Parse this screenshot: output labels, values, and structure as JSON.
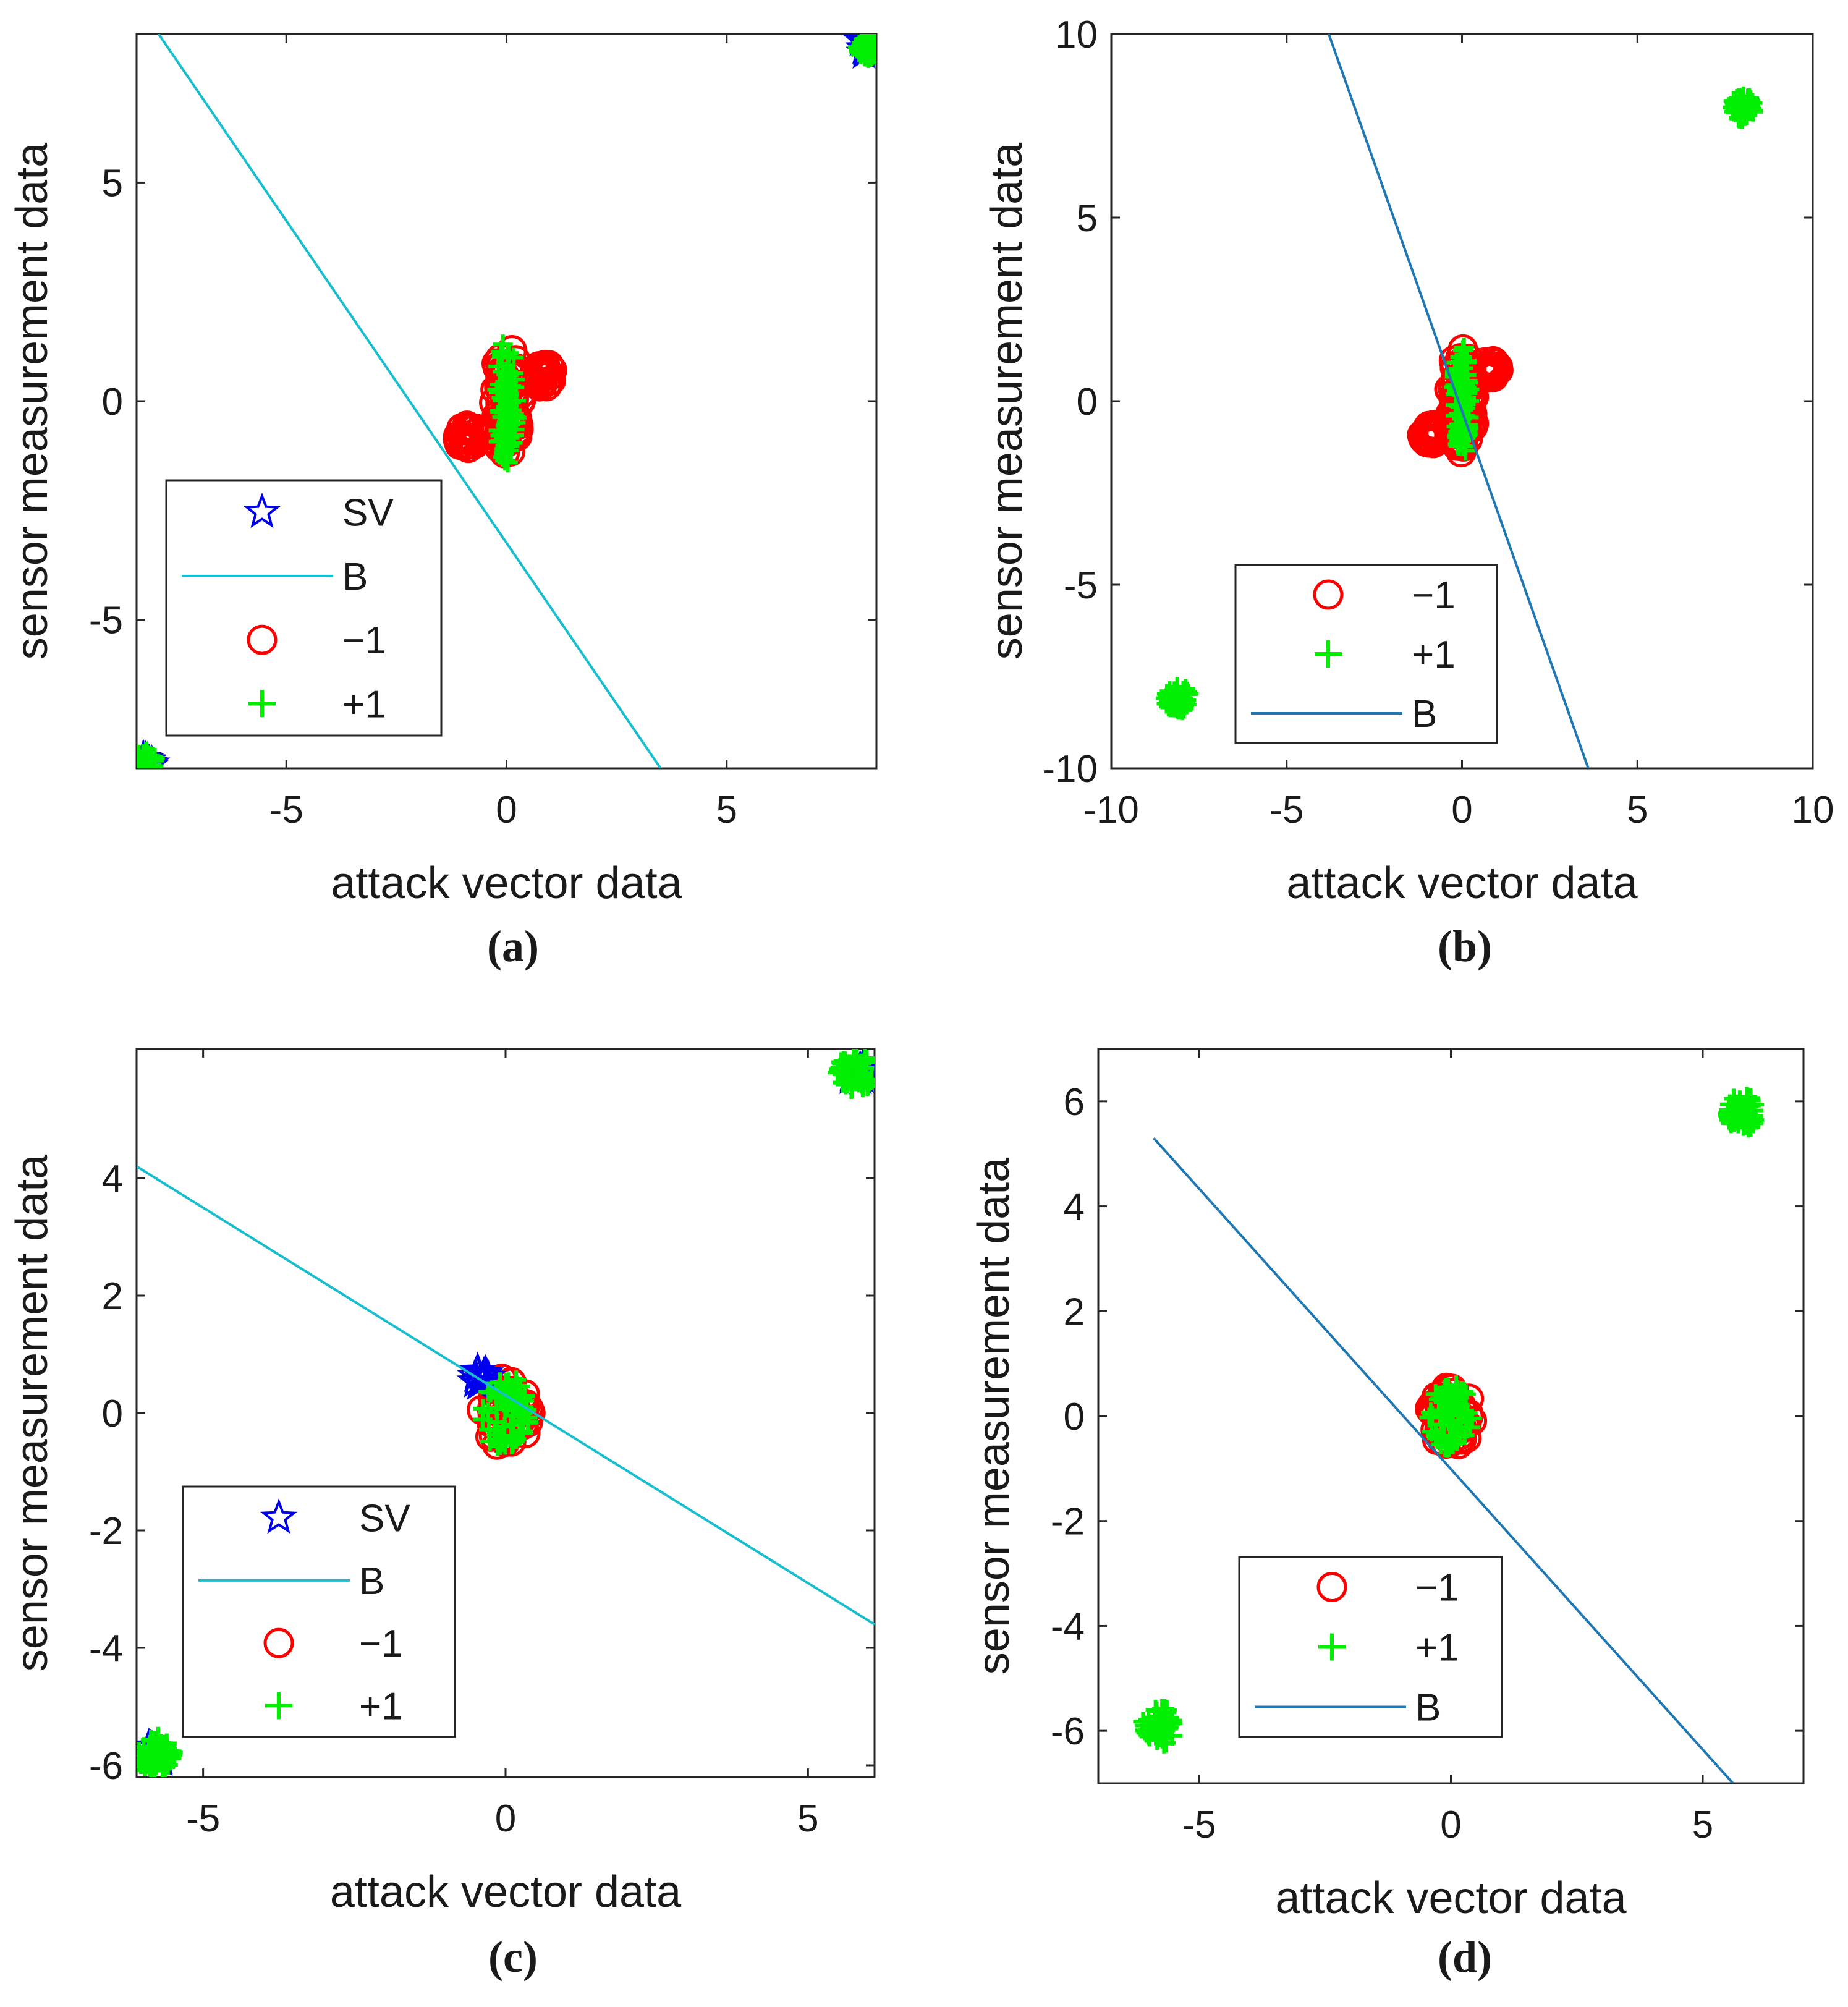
{
  "chart_data": [
    {
      "panel": "a",
      "type": "scatter",
      "caption": "(a)",
      "xlabel": "attack vector data",
      "ylabel": "sensor measurement data",
      "xlim": [
        -8.4,
        8.4
      ],
      "ylim": [
        -8.4,
        8.4
      ],
      "xticks": [
        -5,
        0,
        5
      ],
      "yticks": [
        -5,
        0,
        5
      ],
      "xtick_labels": [
        "-5",
        "0",
        "5"
      ],
      "ytick_labels": [
        "-5",
        "0",
        "5"
      ],
      "legend": [
        "SV",
        "B",
        "−1",
        "+1"
      ],
      "legend_position": "lower-left",
      "boundary_color": "#17becf",
      "boundary": [
        [
          -7.9,
          8.4
        ],
        [
          3.5,
          -8.4
        ]
      ],
      "clusters": [
        {
          "label": "-1",
          "x": 0,
          "y": 0,
          "rx": 0.45,
          "ry": 1.6
        },
        {
          "label": "-1",
          "x": -0.9,
          "y": -0.8,
          "rx": 0.35,
          "ry": 0.35
        },
        {
          "label": "-1",
          "x": 0.8,
          "y": 0.6,
          "rx": 0.4,
          "ry": 0.35
        },
        {
          "label": "+1",
          "x": 0,
          "y": 0,
          "rx": 0.3,
          "ry": 1.7
        },
        {
          "label": "+1",
          "x": 8.2,
          "y": 8.1,
          "rx": 0.3,
          "ry": 0.3
        },
        {
          "label": "+1",
          "x": -8.2,
          "y": -8.2,
          "rx": 0.3,
          "ry": 0.3
        }
      ],
      "support_vectors": [
        [
          8.2,
          8.1
        ],
        [
          -8.2,
          -8.2
        ]
      ]
    },
    {
      "panel": "b",
      "type": "scatter",
      "caption": "(b)",
      "xlabel": "attack vector data",
      "ylabel": "sensor measurement data",
      "xlim": [
        -10,
        10
      ],
      "ylim": [
        -10,
        10
      ],
      "xticks": [
        -10,
        -5,
        0,
        5,
        10
      ],
      "yticks": [
        -10,
        -5,
        0,
        5,
        10
      ],
      "xtick_labels": [
        "-10",
        "-5",
        "0",
        "5",
        "10"
      ],
      "ytick_labels": [
        "-10",
        "-5",
        "0",
        "5",
        "10"
      ],
      "legend": [
        "−1",
        "+1",
        "B"
      ],
      "legend_position": "lower-center",
      "boundary_color": "#1f77b4",
      "boundary": [
        [
          -3.8,
          10
        ],
        [
          3.6,
          -10
        ]
      ],
      "clusters": [
        {
          "label": "-1",
          "x": 0,
          "y": 0,
          "rx": 0.5,
          "ry": 1.8
        },
        {
          "label": "-1",
          "x": -0.9,
          "y": -0.9,
          "rx": 0.4,
          "ry": 0.35
        },
        {
          "label": "-1",
          "x": 0.8,
          "y": 0.9,
          "rx": 0.4,
          "ry": 0.35
        },
        {
          "label": "+1",
          "x": 0,
          "y": 0,
          "rx": 0.3,
          "ry": 1.8
        },
        {
          "label": "+1",
          "x": 8.0,
          "y": 8.0,
          "rx": 0.4,
          "ry": 0.4
        },
        {
          "label": "+1",
          "x": -8.1,
          "y": -8.1,
          "rx": 0.45,
          "ry": 0.4
        }
      ],
      "support_vectors": []
    },
    {
      "panel": "c",
      "type": "scatter",
      "caption": "(c)",
      "xlabel": "attack vector data",
      "ylabel": "sensor measurement data",
      "xlim": [
        -6.1,
        6.1
      ],
      "ylim": [
        -6.2,
        6.2
      ],
      "xticks": [
        -5,
        0,
        5
      ],
      "yticks": [
        -6,
        -4,
        -2,
        0,
        2,
        4
      ],
      "xtick_labels": [
        "-5",
        "0",
        "5"
      ],
      "ytick_labels": [
        "-6",
        "-4",
        "-2",
        "0",
        "2",
        "4"
      ],
      "legend": [
        "SV",
        "B",
        "−1",
        "+1"
      ],
      "legend_position": "lower-left",
      "boundary_color": "#17becf",
      "boundary": [
        [
          -6.1,
          4.2
        ],
        [
          6.1,
          -3.6
        ]
      ],
      "clusters": [
        {
          "label": "-1",
          "x": 0,
          "y": 0,
          "rx": 0.55,
          "ry": 0.75
        },
        {
          "label": "+1",
          "x": 0,
          "y": 0,
          "rx": 0.5,
          "ry": 0.75
        },
        {
          "label": "+1",
          "x": 5.8,
          "y": 5.8,
          "rx": 0.4,
          "ry": 0.35
        },
        {
          "label": "+1",
          "x": -5.8,
          "y": -5.8,
          "rx": 0.4,
          "ry": 0.35
        }
      ],
      "support_vectors": [
        [
          5.8,
          5.8
        ],
        [
          -5.8,
          -5.8
        ],
        [
          -0.4,
          0.6
        ]
      ]
    },
    {
      "panel": "d",
      "type": "scatter",
      "caption": "(d)",
      "xlabel": "attack vector data",
      "ylabel": "sensor measurement data",
      "xlim": [
        -7,
        7
      ],
      "ylim": [
        -7,
        7
      ],
      "xticks": [
        -5,
        0,
        5
      ],
      "yticks": [
        -6,
        -4,
        -2,
        0,
        2,
        4,
        6
      ],
      "xtick_labels": [
        "-5",
        "0",
        "5"
      ],
      "ytick_labels": [
        "-6",
        "-4",
        "-2",
        "0",
        "2",
        "4",
        "6"
      ],
      "legend": [
        "−1",
        "+1",
        "B"
      ],
      "legend_position": "lower-center",
      "boundary_color": "#1f77b4",
      "boundary": [
        [
          -5.9,
          5.3
        ],
        [
          5.6,
          -7
        ]
      ],
      "clusters": [
        {
          "label": "-1",
          "x": 0,
          "y": 0,
          "rx": 0.6,
          "ry": 0.75
        },
        {
          "label": "+1",
          "x": 0,
          "y": 0,
          "rx": 0.55,
          "ry": 0.75
        },
        {
          "label": "+1",
          "x": 5.8,
          "y": 5.8,
          "rx": 0.4,
          "ry": 0.4
        },
        {
          "label": "+1",
          "x": -5.8,
          "y": -5.9,
          "rx": 0.4,
          "ry": 0.45
        }
      ],
      "support_vectors": []
    }
  ],
  "colors": {
    "neg_class": "#ff0000",
    "pos_class": "#00ee00",
    "support_vector": "#0000ee",
    "axis": "#262626"
  }
}
